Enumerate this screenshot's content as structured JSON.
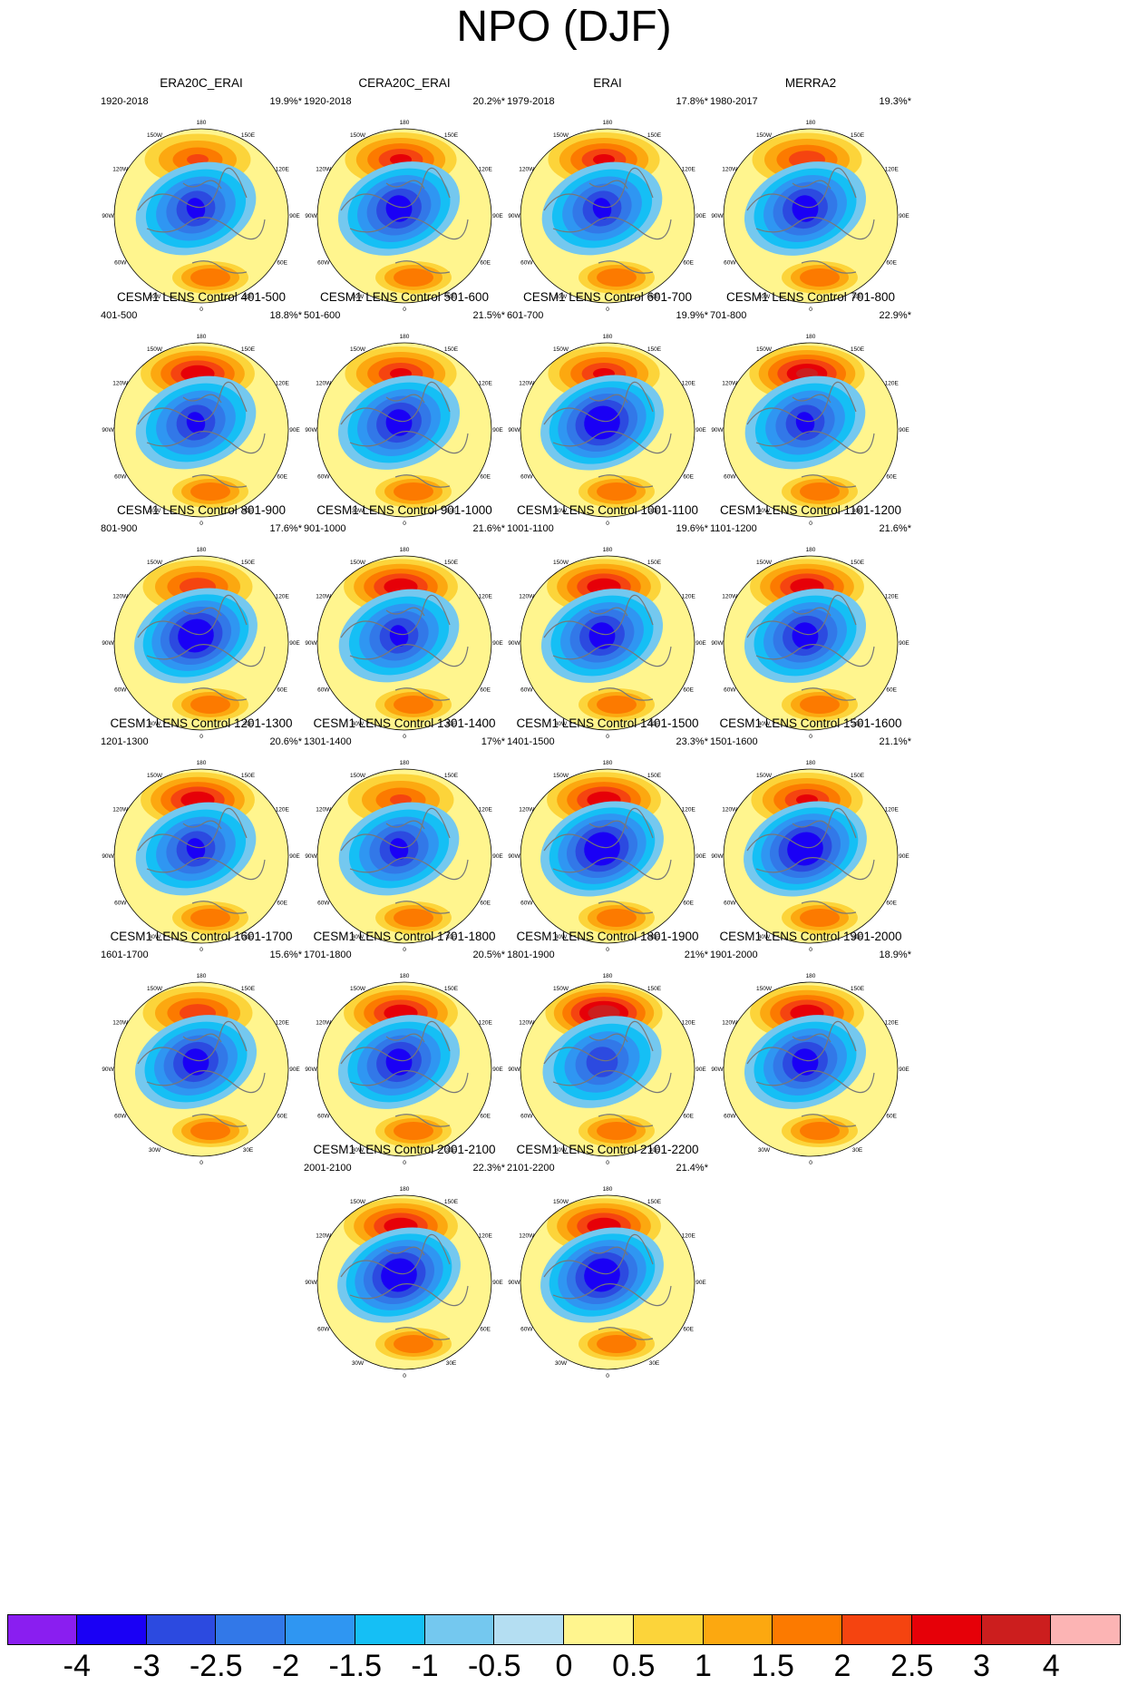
{
  "title": "NPO (DJF)",
  "panels": [
    {
      "title": "ERA20C_ERAI",
      "period": "1920-2018",
      "variance": "19.9%*",
      "high_peak": 2.0,
      "low_peak": -3.0
    },
    {
      "title": "CERA20C_ERAI",
      "period": "1920-2018",
      "variance": "20.2%*",
      "high_peak": 2.5,
      "low_peak": -3.2
    },
    {
      "title": "ERAI",
      "period": "1979-2018",
      "variance": "17.8%*",
      "high_peak": 2.5,
      "low_peak": -3.0
    },
    {
      "title": "MERRA2",
      "period": "1980-2017",
      "variance": "19.3%*",
      "high_peak": 2.3,
      "low_peak": -3.2
    },
    {
      "title": "CESM1 LENS Control 401-500",
      "period": "401-500",
      "variance": "18.8%*",
      "high_peak": 2.8,
      "low_peak": -3.0
    },
    {
      "title": "CESM1 LENS Control 501-600",
      "period": "501-600",
      "variance": "21.5%*",
      "high_peak": 2.5,
      "low_peak": -3.2
    },
    {
      "title": "CESM1 LENS Control 601-700",
      "period": "601-700",
      "variance": "19.9%*",
      "high_peak": 2.5,
      "low_peak": -3.5
    },
    {
      "title": "CESM1 LENS Control 701-800",
      "period": "701-800",
      "variance": "22.9%*",
      "high_peak": 3.0,
      "low_peak": -3.0
    },
    {
      "title": "CESM1 LENS Control 801-900",
      "period": "801-900",
      "variance": "17.6%*",
      "high_peak": 2.3,
      "low_peak": -3.5
    },
    {
      "title": "CESM1 LENS Control 901-1000",
      "period": "901-1000",
      "variance": "21.6%*",
      "high_peak": 2.8,
      "low_peak": -3.0
    },
    {
      "title": "CESM1 LENS Control 1001-1100",
      "period": "1001-1100",
      "variance": "19.6%*",
      "high_peak": 2.8,
      "low_peak": -3.2
    },
    {
      "title": "CESM1 LENS Control 1101-1200",
      "period": "1101-1200",
      "variance": "21.6%*",
      "high_peak": 2.8,
      "low_peak": -3.2
    },
    {
      "title": "CESM1 LENS Control 1201-1300",
      "period": "1201-1300",
      "variance": "20.6%*",
      "high_peak": 2.8,
      "low_peak": -3.0
    },
    {
      "title": "CESM1 LENS Control 1301-1400",
      "period": "1301-1400",
      "variance": "17%*",
      "high_peak": 2.0,
      "low_peak": -3.0
    },
    {
      "title": "CESM1 LENS Control 1401-1500",
      "period": "1401-1500",
      "variance": "23.3%*",
      "high_peak": 2.8,
      "low_peak": -3.5
    },
    {
      "title": "CESM1 LENS Control 1501-1600",
      "period": "1501-1600",
      "variance": "21.1%*",
      "high_peak": 2.5,
      "low_peak": -3.5
    },
    {
      "title": "CESM1 LENS Control 1601-1700",
      "period": "1601-1700",
      "variance": "15.6%*",
      "high_peak": 2.3,
      "low_peak": -3.2
    },
    {
      "title": "CESM1 LENS Control 1701-1800",
      "period": "1701-1800",
      "variance": "20.5%*",
      "high_peak": 2.8,
      "low_peak": -3.2
    },
    {
      "title": "CESM1 LENS Control 1801-1900",
      "period": "1801-1900",
      "variance": "21%*",
      "high_peak": 3.3,
      "low_peak": -2.8
    },
    {
      "title": "CESM1 LENS Control 1901-2000",
      "period": "1901-2000",
      "variance": "18.9%*",
      "high_peak": 2.8,
      "low_peak": -3.2
    },
    {
      "title": "CESM1 LENS Control 2001-2100",
      "period": "2001-2100",
      "variance": "22.3%*",
      "high_peak": 2.8,
      "low_peak": -3.5
    },
    {
      "title": "CESM1 LENS Control 2101-2200",
      "period": "2101-2200",
      "variance": "21.4%*",
      "high_peak": 2.8,
      "low_peak": -3.5
    }
  ],
  "map_ticks": [
    "180",
    "150W",
    "150E",
    "120W",
    "120E",
    "90W",
    "90E",
    "60W",
    "60E",
    "30W",
    "30E",
    "0"
  ],
  "colorbar": {
    "labels": [
      "-4",
      "-3",
      "-2.5",
      "-2",
      "-1.5",
      "-1",
      "-0.5",
      "0",
      "0.5",
      "1",
      "1.5",
      "2",
      "2.5",
      "3",
      "4"
    ],
    "colors": [
      "#8a1ef0",
      "#1a00f5",
      "#2c4ae0",
      "#3278e8",
      "#2f96f2",
      "#15bff5",
      "#74c8ef",
      "#b4def2",
      "#fff58e",
      "#fcd43a",
      "#fca810",
      "#fc7a00",
      "#f54410",
      "#e60008",
      "#cc1e1e",
      "#fcb4b4"
    ]
  }
}
